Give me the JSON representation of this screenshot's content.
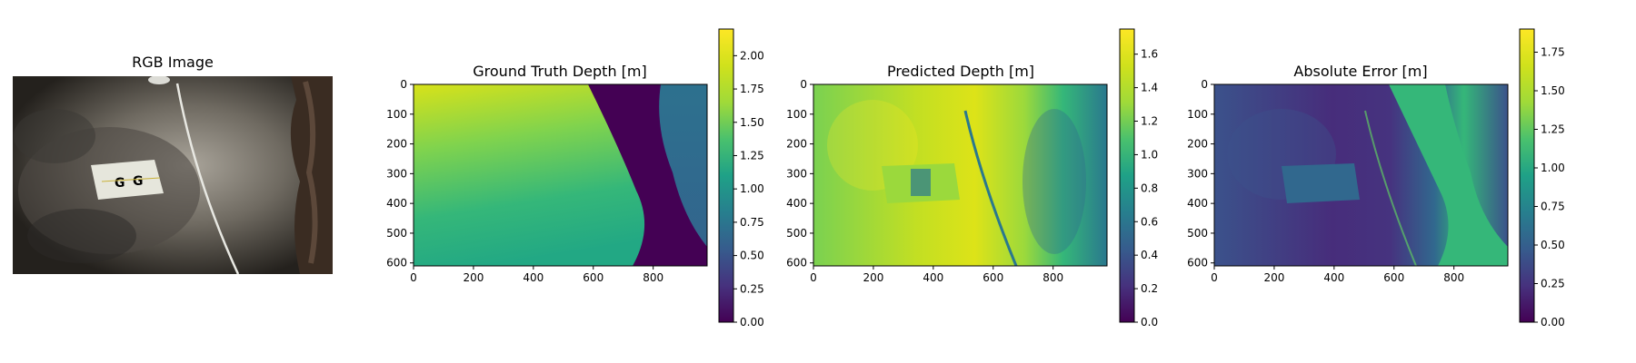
{
  "chart_data": [
    {
      "type": "image",
      "title": "RGB Image",
      "axes": "off",
      "description_hint": "photo",
      "colors": {
        "floor": "#5e5a52",
        "light": "#bdb8ae",
        "rock": "#3a2c22",
        "target": "#e6e6dc"
      }
    },
    {
      "type": "heatmap",
      "title": "Ground Truth Depth [m]",
      "xlim": [
        0,
        980
      ],
      "ylim": [
        610,
        0
      ],
      "xticks": [
        "0",
        "200",
        "400",
        "600",
        "800"
      ],
      "yticks": [
        "0",
        "100",
        "200",
        "300",
        "400",
        "500",
        "600"
      ],
      "colorbar": {
        "range": [
          0,
          2.2
        ],
        "ticks": [
          "0.00",
          "0.25",
          "0.50",
          "0.75",
          "1.00",
          "1.25",
          "1.50",
          "1.75",
          "2.00"
        ],
        "tick_values": [
          0,
          0.25,
          0.5,
          0.75,
          1.0,
          1.25,
          1.5,
          1.75,
          2.0
        ]
      },
      "colormap": "viridis"
    },
    {
      "type": "heatmap",
      "title": "Predicted Depth [m]",
      "xlim": [
        0,
        980
      ],
      "ylim": [
        610,
        0
      ],
      "xticks": [
        "0",
        "200",
        "400",
        "600",
        "800"
      ],
      "yticks": [
        "0",
        "100",
        "200",
        "300",
        "400",
        "500",
        "600"
      ],
      "colorbar": {
        "range": [
          0,
          1.75
        ],
        "ticks": [
          "0.0",
          "0.2",
          "0.4",
          "0.6",
          "0.8",
          "1.0",
          "1.2",
          "1.4",
          "1.6"
        ],
        "tick_values": [
          0,
          0.2,
          0.4,
          0.6,
          0.8,
          1.0,
          1.2,
          1.4,
          1.6
        ]
      },
      "colormap": "viridis"
    },
    {
      "type": "heatmap",
      "title": "Absolute Error [m]",
      "xlim": [
        0,
        980
      ],
      "ylim": [
        610,
        0
      ],
      "xticks": [
        "0",
        "200",
        "400",
        "600",
        "800"
      ],
      "yticks": [
        "0",
        "100",
        "200",
        "300",
        "400",
        "500",
        "600"
      ],
      "colorbar": {
        "range": [
          0,
          1.9
        ],
        "ticks": [
          "0.00",
          "0.25",
          "0.50",
          "0.75",
          "1.00",
          "1.25",
          "1.50",
          "1.75"
        ],
        "tick_values": [
          0,
          0.25,
          0.5,
          0.75,
          1.0,
          1.25,
          1.5,
          1.75
        ]
      },
      "colormap": "viridis"
    }
  ]
}
